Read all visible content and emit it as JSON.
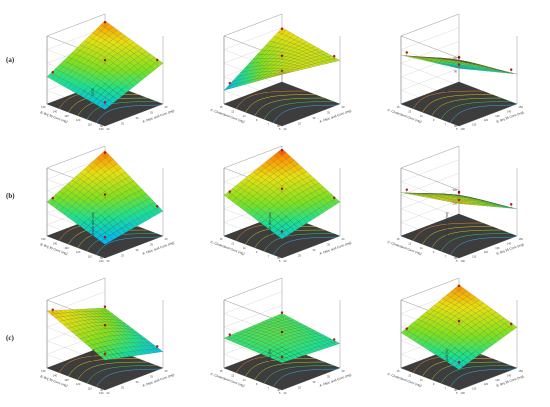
{
  "figure": {
    "row_labels": [
      "(a)",
      "(b)",
      "(c)"
    ]
  },
  "chart_data": [
    {
      "type": "surface",
      "row": 0,
      "col": 0,
      "xlabel": "A: Oleic acid Conc (mg)",
      "ylabel": "B: Brij 35 Conc (mg)",
      "zlabel": "EE%",
      "xlim": [
        20,
        40
      ],
      "ylim": [
        100,
        150
      ],
      "zlim": [
        50,
        100
      ],
      "x_ticks": [
        "20",
        "25",
        "30",
        "35",
        "40"
      ],
      "y_ticks": [
        "100",
        "110",
        "120",
        "130",
        "140",
        "150"
      ],
      "z_ticks": [
        "50",
        "60",
        "70",
        "80",
        "90",
        "100"
      ],
      "corners": [
        [
          20,
          100,
          62
        ],
        [
          40,
          100,
          80
        ],
        [
          40,
          150,
          95
        ],
        [
          20,
          150,
          70
        ]
      ]
    },
    {
      "type": "surface",
      "row": 0,
      "col": 1,
      "xlabel": "A: Oleic acid Conc (mg)",
      "ylabel": "C: Cholesterol Conc (mg)",
      "zlabel": "EE%",
      "xlim": [
        20,
        40
      ],
      "ylim": [
        5,
        15
      ],
      "zlim": [
        50,
        100
      ],
      "x_ticks": [
        "20",
        "25",
        "30",
        "35",
        "40"
      ],
      "y_ticks": [
        "5",
        "7",
        "9",
        "11",
        "13",
        "15"
      ],
      "z_ticks": [
        "50",
        "60",
        "70",
        "80",
        "90",
        "100"
      ],
      "corners": [
        [
          20,
          5,
          88
        ],
        [
          40,
          5,
          82
        ],
        [
          40,
          15,
          90
        ],
        [
          20,
          15,
          60
        ]
      ]
    },
    {
      "type": "surface",
      "row": 0,
      "col": 2,
      "xlabel": "B: Brij 35 Conc (mg)",
      "ylabel": "C: Cholesterol Conc (mg)",
      "zlabel": "EE%",
      "xlim": [
        100,
        150
      ],
      "ylim": [
        5,
        15
      ],
      "zlim": [
        50,
        100
      ],
      "x_ticks": [
        "100",
        "110",
        "120",
        "130",
        "140",
        "150"
      ],
      "y_ticks": [
        "5",
        "7",
        "9",
        "11",
        "13",
        "15"
      ],
      "z_ticks": [
        "50",
        "60",
        "70",
        "80",
        "90",
        "100"
      ],
      "corners": [
        [
          100,
          5,
          98
        ],
        [
          150,
          5,
          72
        ],
        [
          150,
          15,
          60
        ],
        [
          100,
          15,
          86
        ]
      ]
    },
    {
      "type": "surface",
      "row": 1,
      "col": 0,
      "xlabel": "A: Oleic acid Conc (mg)",
      "ylabel": "B: Brij 35 Conc (mg)",
      "zlabel": "Vesicle size (nm)",
      "xlim": [
        20,
        40
      ],
      "ylim": [
        100,
        150
      ],
      "zlim": [
        50,
        350
      ],
      "x_ticks": [
        "20",
        "25",
        "30",
        "35",
        "40"
      ],
      "y_ticks": [
        "100",
        "110",
        "120",
        "130",
        "140",
        "150"
      ],
      "z_ticks": [
        "50",
        "100",
        "150",
        "200",
        "250",
        "300",
        "350"
      ],
      "corners": [
        [
          20,
          100,
          110
        ],
        [
          40,
          100,
          160
        ],
        [
          40,
          150,
          330
        ],
        [
          20,
          150,
          200
        ]
      ]
    },
    {
      "type": "surface",
      "row": 1,
      "col": 1,
      "xlabel": "A: Oleic acid Conc (mg)",
      "ylabel": "C: Cholesterol Conc (mg)",
      "zlabel": "Vesicle size (nm)",
      "xlim": [
        20,
        40
      ],
      "ylim": [
        5,
        15
      ],
      "zlim": [
        50,
        300
      ],
      "x_ticks": [
        "20",
        "25",
        "30",
        "35",
        "40"
      ],
      "y_ticks": [
        "5",
        "7",
        "9",
        "11",
        "13",
        "15"
      ],
      "z_ticks": [
        "50",
        "100",
        "150",
        "200",
        "250",
        "300"
      ],
      "corners": [
        [
          20,
          5,
          120
        ],
        [
          40,
          5,
          175
        ],
        [
          40,
          15,
          290
        ],
        [
          20,
          15,
          200
        ]
      ]
    },
    {
      "type": "surface",
      "row": 1,
      "col": 2,
      "xlabel": "B: Brij 35 Conc (mg)",
      "ylabel": "C: Cholesterol Conc (mg)",
      "zlabel": "Vesicle size (nm)",
      "xlim": [
        100,
        150
      ],
      "ylim": [
        5,
        15
      ],
      "zlim": [
        50,
        300
      ],
      "x_ticks": [
        "100",
        "110",
        "120",
        "130",
        "140",
        "150"
      ],
      "y_ticks": [
        "5",
        "7",
        "9",
        "11",
        "13",
        "15"
      ],
      "z_ticks": [
        "50",
        "100",
        "150",
        "200",
        "250",
        "300"
      ],
      "corners": [
        [
          100,
          5,
          250
        ],
        [
          150,
          5,
          150
        ],
        [
          150,
          15,
          120
        ],
        [
          100,
          15,
          210
        ]
      ]
    },
    {
      "type": "surface",
      "row": 2,
      "col": 0,
      "xlabel": "A: Oleic acid Conc (mg)",
      "ylabel": "B: Brij 35 Conc (mg)",
      "zlabel": "Q24h (%)",
      "xlim": [
        20,
        40
      ],
      "ylim": [
        100,
        150
      ],
      "zlim": [
        40,
        90
      ],
      "x_ticks": [
        "20",
        "25",
        "30",
        "35",
        "40"
      ],
      "y_ticks": [
        "100",
        "110",
        "120",
        "130",
        "140",
        "150"
      ],
      "z_ticks": [
        "40",
        "50",
        "60",
        "70",
        "80",
        "90"
      ],
      "corners": [
        [
          20,
          100,
          62
        ],
        [
          40,
          100,
          52
        ],
        [
          40,
          150,
          68
        ],
        [
          20,
          150,
          82
        ]
      ]
    },
    {
      "type": "surface",
      "row": 2,
      "col": 1,
      "xlabel": "A: Oleic acid Conc (mg)",
      "ylabel": "C: Cholesterol Conc (mg)",
      "zlabel": "Q24h (%)",
      "xlim": [
        20,
        40
      ],
      "ylim": [
        5,
        15
      ],
      "zlim": [
        40,
        90
      ],
      "x_ticks": [
        "20",
        "25",
        "30",
        "35",
        "40"
      ],
      "y_ticks": [
        "5",
        "7",
        "9",
        "11",
        "13",
        "15"
      ],
      "z_ticks": [
        "40",
        "50",
        "60",
        "70",
        "80",
        "90"
      ],
      "corners": [
        [
          20,
          5,
          60
        ],
        [
          40,
          5,
          58
        ],
        [
          40,
          15,
          64
        ],
        [
          20,
          15,
          62
        ]
      ]
    },
    {
      "type": "surface",
      "row": 2,
      "col": 2,
      "xlabel": "B: Brij 35 Conc (mg)",
      "ylabel": "C: Cholesterol Conc (mg)",
      "zlabel": "Q24h (%)",
      "xlim": [
        100,
        150
      ],
      "ylim": [
        5,
        15
      ],
      "zlim": [
        40,
        90
      ],
      "x_ticks": [
        "100",
        "110",
        "120",
        "130",
        "140",
        "150"
      ],
      "y_ticks": [
        "5",
        "7",
        "9",
        "11",
        "13",
        "15"
      ],
      "z_ticks": [
        "40",
        "50",
        "60",
        "70",
        "80",
        "90"
      ],
      "corners": [
        [
          100,
          5,
          55
        ],
        [
          150,
          5,
          70
        ],
        [
          150,
          15,
          85
        ],
        [
          100,
          15,
          66
        ]
      ]
    }
  ]
}
